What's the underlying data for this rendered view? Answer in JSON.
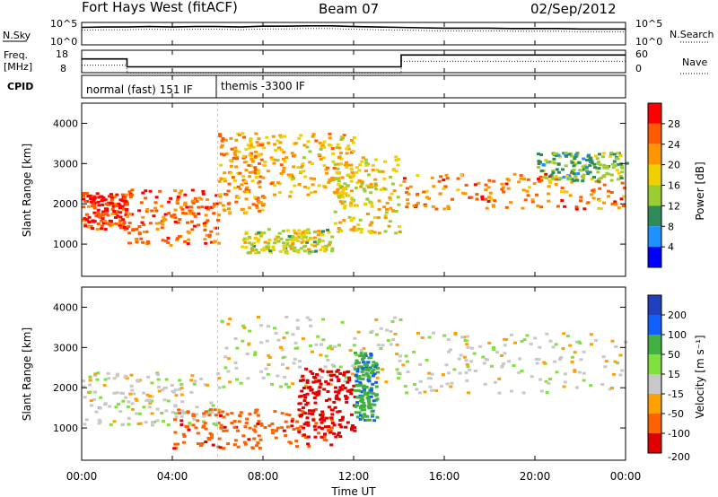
{
  "header": {
    "station": "Fort Hays West (fitACF)",
    "beam": "Beam 07",
    "date": "02/Sep/2012"
  },
  "noise_panel": {
    "left_label": "N.Sky",
    "left_ticks": [
      "10^5",
      "10^0"
    ],
    "right_label": "N.Search",
    "right_ticks": [
      "10^5",
      "10^0"
    ]
  },
  "freq_panel": {
    "left_label_line1": "Freq.",
    "left_label_line2": "[MHz]",
    "left_ticks": [
      "18",
      "8"
    ],
    "right_label": "Nave",
    "right_ticks": [
      "60",
      "0"
    ]
  },
  "cpid_panel": {
    "label": "CPID",
    "segments": [
      "normal (fast) 151 IF",
      "themis -3300 IF"
    ]
  },
  "power_panel": {
    "ylabel": "Slant Range [km]",
    "yticks": [
      "4000",
      "3000",
      "2000",
      "1000"
    ],
    "colorbar_label": "Power [dB]",
    "colorbar_ticks": [
      "28",
      "24",
      "20",
      "16",
      "12",
      "8",
      "4"
    ],
    "colors": [
      "#ff0000",
      "#ff5a00",
      "#ff9600",
      "#f0d000",
      "#9acd32",
      "#2e8b57",
      "#1e90ff",
      "#0000ff"
    ]
  },
  "velocity_panel": {
    "ylabel": "Slant Range [km]",
    "yticks": [
      "4000",
      "3000",
      "2000",
      "1000"
    ],
    "colorbar_label": "Velocity [m s⁻¹]",
    "colorbar_ticks": [
      "200",
      "100",
      "50",
      "15",
      "-15",
      "-50",
      "-100",
      "-200"
    ],
    "colors": [
      "#2040c0",
      "#1060ff",
      "#40b040",
      "#80e040",
      "#c8c8c8",
      "#ffa000",
      "#ff6000",
      "#e00000"
    ]
  },
  "x_axis": {
    "ticks": [
      "00:00",
      "04:00",
      "08:00",
      "12:00",
      "16:00",
      "20:00",
      "00:00"
    ],
    "label": "Time UT"
  },
  "chart_data": [
    {
      "type": "line",
      "name": "noise",
      "x_hours": [
        0,
        1,
        2,
        3,
        4,
        5,
        6,
        7,
        8,
        9,
        10,
        11,
        12,
        13,
        14,
        15,
        16,
        17,
        18,
        19,
        20,
        21,
        22,
        23,
        24
      ],
      "series": [
        {
          "values_log10": [
            4.2,
            4.3,
            4.3,
            4.4,
            4.3,
            4.4,
            4.4,
            4.3,
            4.5,
            4.5,
            4.6,
            4.6,
            4.4,
            4.3,
            4.2,
            4.1,
            4.0,
            4.0,
            4.0,
            3.9,
            3.9,
            3.9,
            3.8,
            3.8,
            3.8
          ]
        }
      ]
    },
    {
      "type": "line",
      "name": "frequency",
      "x_hours": [
        0,
        2.0,
        2.0,
        14.1,
        14.1,
        24
      ],
      "series": [
        {
          "values_mhz": [
            14.5,
            14.5,
            10.5,
            10.5,
            16.5,
            16.5
          ]
        }
      ]
    },
    {
      "type": "heatmap",
      "name": "power",
      "xlim": [
        0,
        24
      ],
      "ylim": [
        200,
        4500
      ],
      "blobs": [
        {
          "x": [
            0,
            2
          ],
          "r": [
            1400,
            2300
          ],
          "dB": 26
        },
        {
          "x": [
            2,
            6
          ],
          "r": [
            1000,
            2400
          ],
          "dB": 24
        },
        {
          "x": [
            6,
            8
          ],
          "r": [
            1800,
            3800
          ],
          "dB": 20
        },
        {
          "x": [
            8,
            12
          ],
          "r": [
            2200,
            3800
          ],
          "dB": 18
        },
        {
          "x": [
            7,
            11
          ],
          "r": [
            800,
            1400
          ],
          "dB": 14
        },
        {
          "x": [
            11,
            14
          ],
          "r": [
            1300,
            3200
          ],
          "dB": 16
        },
        {
          "x": [
            14,
            24
          ],
          "r": [
            1900,
            2800
          ],
          "dB": 22
        },
        {
          "x": [
            20,
            24
          ],
          "r": [
            2600,
            3300
          ],
          "dB": 10
        }
      ]
    },
    {
      "type": "heatmap",
      "name": "velocity",
      "xlim": [
        0,
        24
      ],
      "ylim": [
        200,
        4500
      ],
      "blobs": [
        {
          "x": [
            0,
            6
          ],
          "r": [
            1100,
            2400
          ],
          "v": 0
        },
        {
          "x": [
            6,
            14
          ],
          "r": [
            2000,
            3800
          ],
          "v": 0
        },
        {
          "x": [
            4,
            11
          ],
          "r": [
            500,
            1500
          ],
          "v": -80
        },
        {
          "x": [
            9.5,
            12
          ],
          "r": [
            800,
            2500
          ],
          "v": -200
        },
        {
          "x": [
            12,
            13
          ],
          "r": [
            1200,
            2900
          ],
          "v": 60
        },
        {
          "x": [
            14,
            24
          ],
          "r": [
            1900,
            3400
          ],
          "v": 0
        }
      ]
    }
  ]
}
